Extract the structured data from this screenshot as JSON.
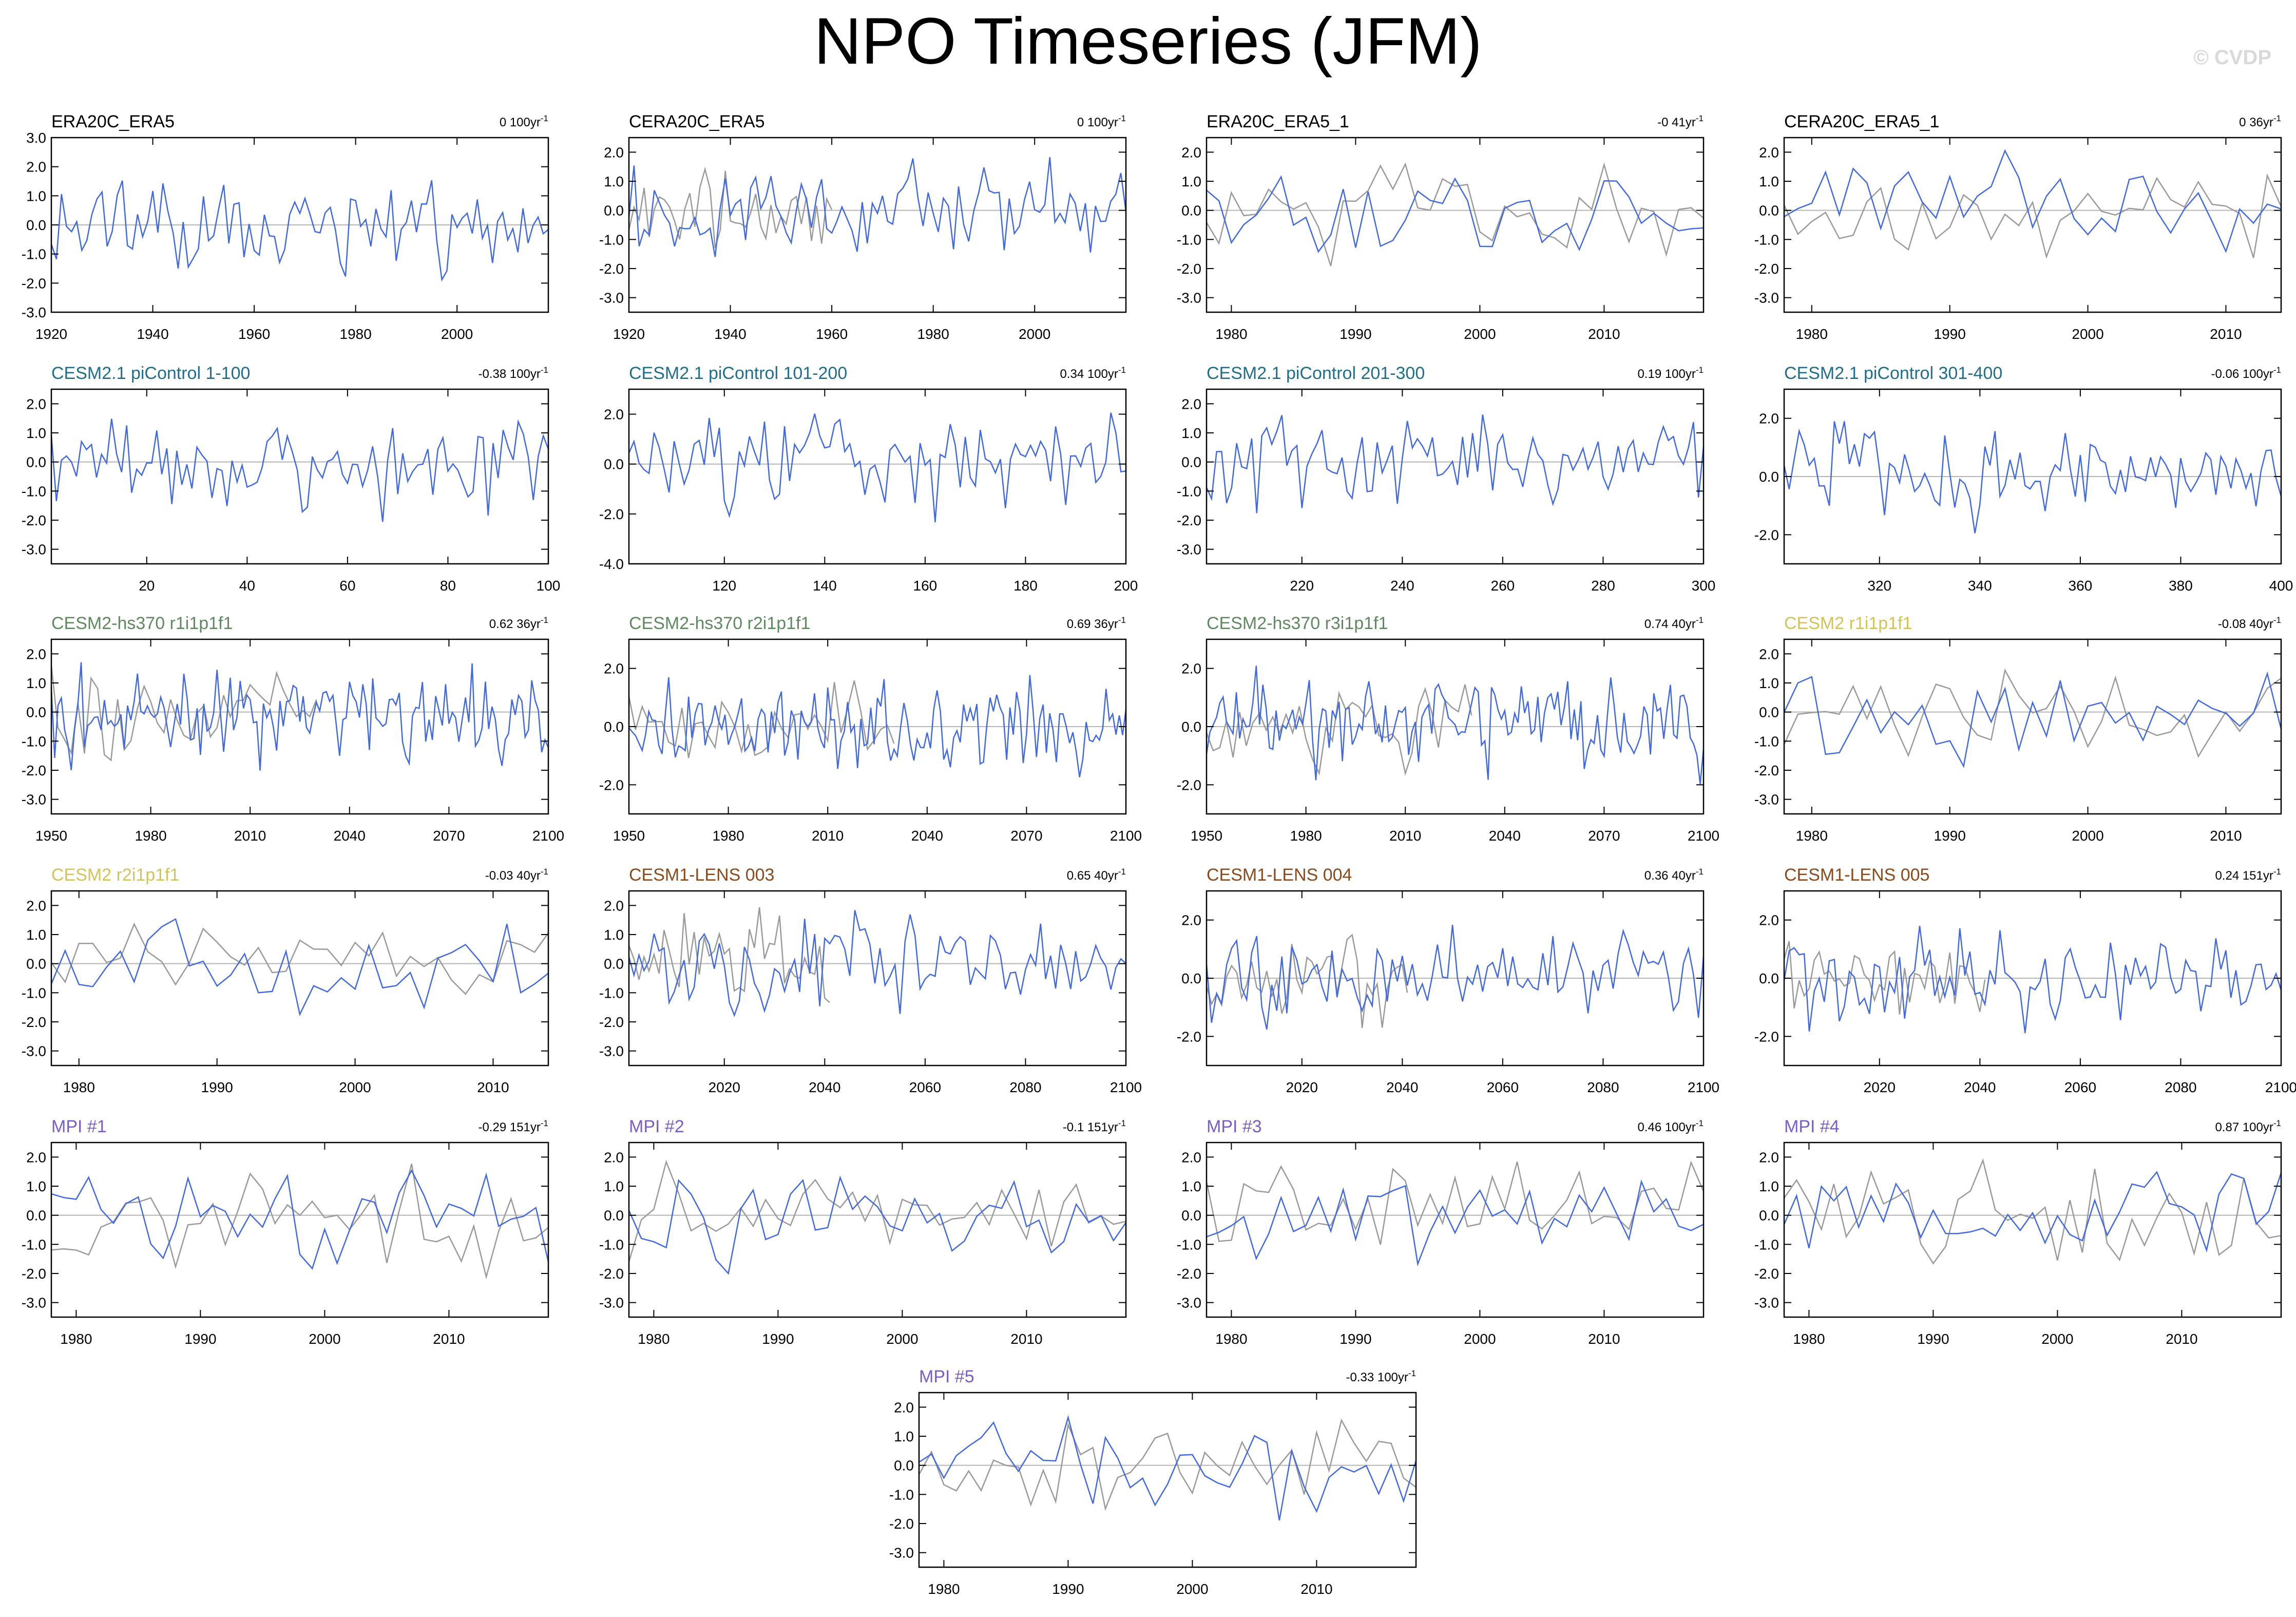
{
  "page": {
    "title": "NPO Timeseries (JFM)",
    "copyright": "© CVDP"
  },
  "colors": {
    "model_line": "#4169e1",
    "obs_line": "#9a9a9a",
    "zero_line": "#b5b5b5"
  },
  "chart_data": [
    {
      "name": "ERA20C_ERA5",
      "title": "ERA20C_ERA5",
      "title_color": "#000000",
      "trend": "0 100yr",
      "type": "line",
      "xlim": [
        1920,
        2018
      ],
      "xticks": [
        1920,
        1940,
        1960,
        1980,
        2000
      ],
      "ylim": [
        -3,
        3
      ],
      "yticks": [
        -3,
        -2,
        -1,
        0,
        1,
        2,
        3
      ],
      "ytick_labels": [
        "-3.0",
        "-2.0",
        "-1.0",
        "0.0",
        "1.0",
        "2.0",
        "3.0"
      ],
      "obs": false,
      "seed": 11,
      "amp": 1.0
    },
    {
      "name": "CERA20C_ERA5",
      "title": "CERA20C_ERA5",
      "title_color": "#000000",
      "trend": "0 100yr",
      "type": "line",
      "xlim": [
        1920,
        2018
      ],
      "xticks": [
        1920,
        1940,
        1960,
        1980,
        2000
      ],
      "ylim": [
        -3.5,
        2.5
      ],
      "yticks": [
        -3,
        -2,
        -1,
        0,
        1,
        2
      ],
      "ytick_labels": [
        "-3.0",
        "-2.0",
        "-1.0",
        "0.0",
        "1.0",
        "2.0"
      ],
      "obs": true,
      "seed": 12,
      "amp": 1.0
    },
    {
      "name": "ERA20C_ERA5_1",
      "title": "ERA20C_ERA5_1",
      "title_color": "#000000",
      "trend": "-0 41yr",
      "type": "line",
      "xlim": [
        1978,
        2018
      ],
      "xticks": [
        1980,
        1990,
        2000,
        2010
      ],
      "ylim": [
        -3.5,
        2.5
      ],
      "yticks": [
        -3,
        -2,
        -1,
        0,
        1,
        2
      ],
      "ytick_labels": [
        "-3.0",
        "-2.0",
        "-1.0",
        "0.0",
        "1.0",
        "2.0"
      ],
      "obs": true,
      "seed": 13,
      "amp": 1.0
    },
    {
      "name": "CERA20C_ERA5_1",
      "title": "CERA20C_ERA5_1",
      "title_color": "#000000",
      "trend": "0 36yr",
      "type": "line",
      "xlim": [
        1978,
        2014
      ],
      "xticks": [
        1980,
        1990,
        2000,
        2010
      ],
      "ylim": [
        -3.5,
        2.5
      ],
      "yticks": [
        -3,
        -2,
        -1,
        0,
        1,
        2
      ],
      "ytick_labels": [
        "-3.0",
        "-2.0",
        "-1.0",
        "0.0",
        "1.0",
        "2.0"
      ],
      "obs": true,
      "seed": 14,
      "amp": 1.0
    },
    {
      "name": "CESM2.1 piControl 1-100",
      "title": "CESM2.1 piControl 1-100",
      "title_color": "#1f6e8c",
      "trend": "-0.38 100yr",
      "type": "line",
      "xlim": [
        1,
        100
      ],
      "xticks": [
        20,
        40,
        60,
        80,
        100
      ],
      "ylim": [
        -3.5,
        2.5
      ],
      "yticks": [
        -3,
        -2,
        -1,
        0,
        1,
        2
      ],
      "ytick_labels": [
        "-3.0",
        "-2.0",
        "-1.0",
        "0.0",
        "1.0",
        "2.0"
      ],
      "obs": false,
      "seed": 21,
      "amp": 1.0
    },
    {
      "name": "CESM2.1 piControl 101-200",
      "title": "CESM2.1 piControl 101-200",
      "title_color": "#1f6e8c",
      "trend": "0.34 100yr",
      "type": "line",
      "xlim": [
        101,
        200
      ],
      "xticks": [
        120,
        140,
        160,
        180,
        200
      ],
      "ylim": [
        -4,
        3
      ],
      "yticks": [
        -4,
        -2,
        0,
        2
      ],
      "ytick_labels": [
        "-4.0",
        "-2.0",
        "0.0",
        "2.0"
      ],
      "obs": false,
      "seed": 22,
      "amp": 1.2
    },
    {
      "name": "CESM2.1 piControl 201-300",
      "title": "CESM2.1 piControl 201-300",
      "title_color": "#1f6e8c",
      "trend": "0.19 100yr",
      "type": "line",
      "xlim": [
        201,
        300
      ],
      "xticks": [
        220,
        240,
        260,
        280,
        300
      ],
      "ylim": [
        -3.5,
        2.5
      ],
      "yticks": [
        -3,
        -2,
        -1,
        0,
        1,
        2
      ],
      "ytick_labels": [
        "-3.0",
        "-2.0",
        "-1.0",
        "0.0",
        "1.0",
        "2.0"
      ],
      "obs": false,
      "seed": 23,
      "amp": 1.0
    },
    {
      "name": "CESM2.1 piControl 301-400",
      "title": "CESM2.1 piControl 301-400",
      "title_color": "#1f6e8c",
      "trend": "-0.06 100yr",
      "type": "line",
      "xlim": [
        301,
        400
      ],
      "xticks": [
        320,
        340,
        360,
        380,
        400
      ],
      "ylim": [
        -3,
        3
      ],
      "yticks": [
        -2,
        0,
        2
      ],
      "ytick_labels": [
        "-2.0",
        "0.0",
        "2.0"
      ],
      "obs": false,
      "seed": 24,
      "amp": 1.0
    },
    {
      "name": "CESM2-hs370 r1i1p1f1",
      "title": "CESM2-hs370 r1i1p1f1",
      "title_color": "#5f8a5f",
      "trend": "0.62 36yr",
      "type": "line",
      "xlim": [
        1950,
        2100
      ],
      "xticks": [
        1950,
        1980,
        2010,
        2040,
        2070,
        2100
      ],
      "ylim": [
        -3.5,
        2.5
      ],
      "yticks": [
        -3,
        -2,
        -1,
        0,
        1,
        2
      ],
      "ytick_labels": [
        "-3.0",
        "-2.0",
        "-1.0",
        "0.0",
        "1.0",
        "2.0"
      ],
      "obs": true,
      "seed": 31,
      "amp": 1.0
    },
    {
      "name": "CESM2-hs370 r2i1p1f1",
      "title": "CESM2-hs370 r2i1p1f1",
      "title_color": "#5f8a5f",
      "trend": "0.69 36yr",
      "type": "line",
      "xlim": [
        1950,
        2100
      ],
      "xticks": [
        1950,
        1980,
        2010,
        2040,
        2070,
        2100
      ],
      "ylim": [
        -3,
        3
      ],
      "yticks": [
        -2,
        0,
        2
      ],
      "ytick_labels": [
        "-2.0",
        "0.0",
        "2.0"
      ],
      "obs": true,
      "seed": 32,
      "amp": 1.0
    },
    {
      "name": "CESM2-hs370 r3i1p1f1",
      "title": "CESM2-hs370 r3i1p1f1",
      "title_color": "#5f8a5f",
      "trend": "0.74 40yr",
      "type": "line",
      "xlim": [
        1950,
        2100
      ],
      "xticks": [
        1950,
        1980,
        2010,
        2040,
        2070,
        2100
      ],
      "ylim": [
        -3,
        3
      ],
      "yticks": [
        -2,
        0,
        2
      ],
      "ytick_labels": [
        "-2.0",
        "0.0",
        "2.0"
      ],
      "obs": true,
      "seed": 33,
      "amp": 1.0
    },
    {
      "name": "CESM2 r1i1p1f1",
      "title": "CESM2 r1i1p1f1",
      "title_color": "#d4c25a",
      "trend": "-0.08 40yr",
      "type": "line",
      "xlim": [
        1978,
        2014
      ],
      "xticks": [
        1980,
        1990,
        2000,
        2010
      ],
      "ylim": [
        -3.5,
        2.5
      ],
      "yticks": [
        -3,
        -2,
        -1,
        0,
        1,
        2
      ],
      "ytick_labels": [
        "-3.0",
        "-2.0",
        "-1.0",
        "0.0",
        "1.0",
        "2.0"
      ],
      "obs": true,
      "seed": 34,
      "amp": 1.0
    },
    {
      "name": "CESM2 r2i1p1f1",
      "title": "CESM2 r2i1p1f1",
      "title_color": "#d4c25a",
      "trend": "-0.03 40yr",
      "type": "line",
      "xlim": [
        1978,
        2014
      ],
      "xticks": [
        1980,
        1990,
        2000,
        2010
      ],
      "ylim": [
        -3.5,
        2.5
      ],
      "yticks": [
        -3,
        -2,
        -1,
        0,
        1,
        2
      ],
      "ytick_labels": [
        "-3.0",
        "-2.0",
        "-1.0",
        "0.0",
        "1.0",
        "2.0"
      ],
      "obs": true,
      "seed": 41,
      "amp": 1.0
    },
    {
      "name": "CESM1-LENS 003",
      "title": "CESM1-LENS 003",
      "title_color": "#8b4a1c",
      "trend": "0.65 40yr",
      "type": "line",
      "xlim": [
        2001,
        2100
      ],
      "xticks": [
        2020,
        2040,
        2060,
        2080,
        2100
      ],
      "ylim": [
        -3.5,
        2.5
      ],
      "yticks": [
        -3,
        -2,
        -1,
        0,
        1,
        2
      ],
      "ytick_labels": [
        "-3.0",
        "-2.0",
        "-1.0",
        "0.0",
        "1.0",
        "2.0"
      ],
      "obs": true,
      "seed": 42,
      "amp": 1.0
    },
    {
      "name": "CESM1-LENS 004",
      "title": "CESM1-LENS 004",
      "title_color": "#8b4a1c",
      "trend": "0.36 40yr",
      "type": "line",
      "xlim": [
        2001,
        2100
      ],
      "xticks": [
        2020,
        2040,
        2060,
        2080,
        2100
      ],
      "ylim": [
        -3,
        3
      ],
      "yticks": [
        -2,
        0,
        2
      ],
      "ytick_labels": [
        "-2.0",
        "0.0",
        "2.0"
      ],
      "obs": true,
      "seed": 43,
      "amp": 1.0
    },
    {
      "name": "CESM1-LENS 005",
      "title": "CESM1-LENS 005",
      "title_color": "#8b4a1c",
      "trend": "0.24 151yr",
      "type": "line",
      "xlim": [
        2001,
        2100
      ],
      "xticks": [
        2020,
        2040,
        2060,
        2080,
        2100
      ],
      "ylim": [
        -3,
        3
      ],
      "yticks": [
        -2,
        0,
        2
      ],
      "ytick_labels": [
        "-2.0",
        "0.0",
        "2.0"
      ],
      "obs": true,
      "seed": 44,
      "amp": 1.0
    },
    {
      "name": "MPI #1",
      "title": "MPI #1",
      "title_color": "#7b5cc8",
      "trend": "-0.29 151yr",
      "type": "line",
      "xlim": [
        1978,
        2018
      ],
      "xticks": [
        1980,
        1990,
        2000,
        2010
      ],
      "ylim": [
        -3.5,
        2.5
      ],
      "yticks": [
        -3,
        -2,
        -1,
        0,
        1,
        2
      ],
      "ytick_labels": [
        "-3.0",
        "-2.0",
        "-1.0",
        "0.0",
        "1.0",
        "2.0"
      ],
      "obs": true,
      "seed": 51,
      "amp": 1.0
    },
    {
      "name": "MPI #2",
      "title": "MPI #2",
      "title_color": "#7b5cc8",
      "trend": "-0.1 151yr",
      "type": "line",
      "xlim": [
        1978,
        2018
      ],
      "xticks": [
        1980,
        1990,
        2000,
        2010
      ],
      "ylim": [
        -3.5,
        2.5
      ],
      "yticks": [
        -3,
        -2,
        -1,
        0,
        1,
        2
      ],
      "ytick_labels": [
        "-3.0",
        "-2.0",
        "-1.0",
        "0.0",
        "1.0",
        "2.0"
      ],
      "obs": true,
      "seed": 52,
      "amp": 1.0
    },
    {
      "name": "MPI #3",
      "title": "MPI #3",
      "title_color": "#7b5cc8",
      "trend": "0.46 100yr",
      "type": "line",
      "xlim": [
        1978,
        2018
      ],
      "xticks": [
        1980,
        1990,
        2000,
        2010
      ],
      "ylim": [
        -3.5,
        2.5
      ],
      "yticks": [
        -3,
        -2,
        -1,
        0,
        1,
        2
      ],
      "ytick_labels": [
        "-3.0",
        "-2.0",
        "-1.0",
        "0.0",
        "1.0",
        "2.0"
      ],
      "obs": true,
      "seed": 53,
      "amp": 1.0
    },
    {
      "name": "MPI #4",
      "title": "MPI #4",
      "title_color": "#7b5cc8",
      "trend": "0.87 100yr",
      "type": "line",
      "xlim": [
        1978,
        2018
      ],
      "xticks": [
        1980,
        1990,
        2000,
        2010
      ],
      "ylim": [
        -3.5,
        2.5
      ],
      "yticks": [
        -3,
        -2,
        -1,
        0,
        1,
        2
      ],
      "ytick_labels": [
        "-3.0",
        "-2.0",
        "-1.0",
        "0.0",
        "1.0",
        "2.0"
      ],
      "obs": true,
      "seed": 54,
      "amp": 1.0
    },
    {
      "name": "MPI #5",
      "title": "MPI #5",
      "title_color": "#7b5cc8",
      "trend": "-0.33 100yr",
      "type": "line",
      "xlim": [
        1978,
        2018
      ],
      "xticks": [
        1980,
        1990,
        2000,
        2010
      ],
      "ylim": [
        -3.5,
        2.5
      ],
      "yticks": [
        -3,
        -2,
        -1,
        0,
        1,
        2
      ],
      "ytick_labels": [
        "-3.0",
        "-2.0",
        "-1.0",
        "0.0",
        "1.0",
        "2.0"
      ],
      "obs": true,
      "seed": 55,
      "amp": 1.0
    }
  ]
}
